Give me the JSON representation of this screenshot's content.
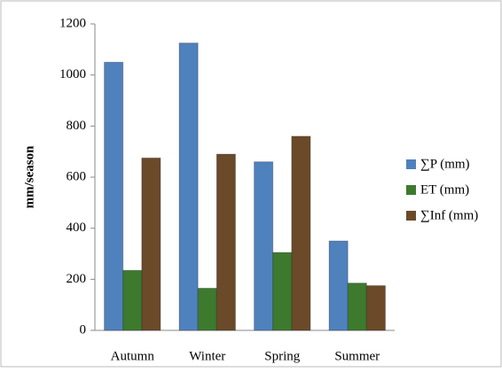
{
  "chart_data": {
    "type": "bar",
    "y_label": "mm/season",
    "categories": [
      "Autumn",
      "Winter",
      "Spring",
      "Summer"
    ],
    "series": [
      {
        "name": "∑P (mm)",
        "color": "#4f81bd",
        "values": [
          1050,
          1125,
          660,
          350
        ]
      },
      {
        "name": "ET (mm)",
        "color": "#3d7a2e",
        "values": [
          235,
          165,
          305,
          185
        ]
      },
      {
        "name": "∑Inf (mm)",
        "color": "#6b4a2a",
        "values": [
          675,
          690,
          760,
          175
        ]
      }
    ],
    "ylim": [
      0,
      1200
    ],
    "yticks": [
      0,
      200,
      400,
      600,
      800,
      1000,
      1200
    ],
    "grid": false,
    "legend": "right"
  }
}
